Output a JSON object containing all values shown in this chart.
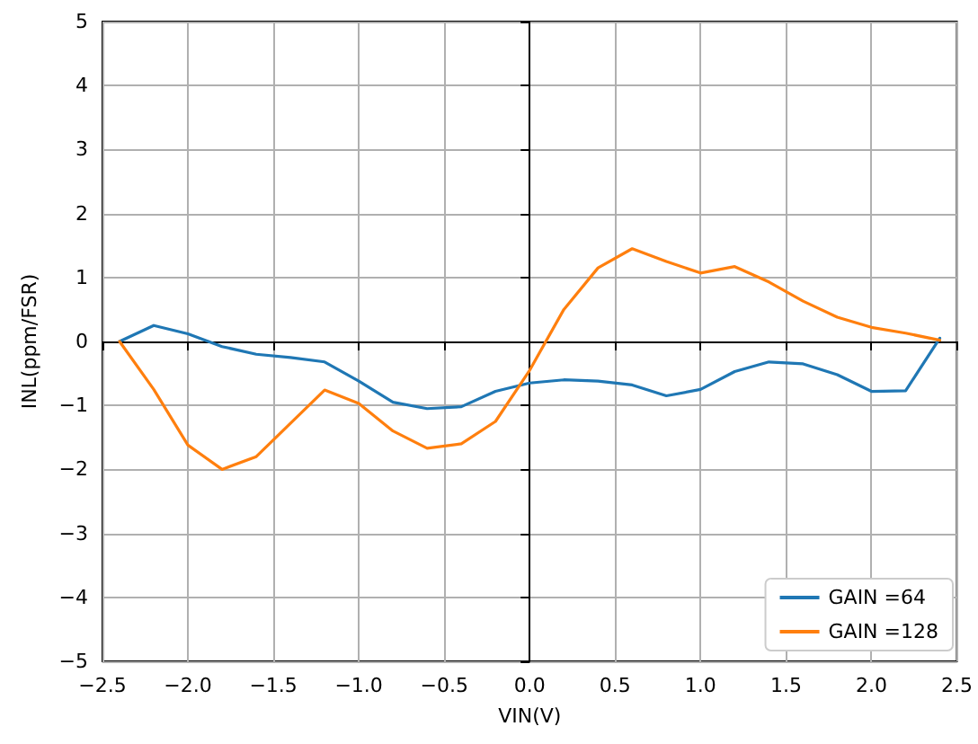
{
  "chart_data": {
    "type": "line",
    "x": [
      -2.4,
      -2.2,
      -2.0,
      -1.8,
      -1.6,
      -1.4,
      -1.2,
      -1.0,
      -0.8,
      -0.6,
      -0.4,
      -0.2,
      0,
      0.2,
      0.4,
      0.6,
      0.8,
      1.0,
      1.2,
      1.4,
      1.6,
      1.8,
      2.0,
      2.2,
      2.4
    ],
    "series": [
      {
        "name": "GAIN =64",
        "color": "#1f77b4",
        "values": [
          0,
          0.25,
          0.12,
          -0.08,
          -0.2,
          -0.25,
          -0.32,
          -0.62,
          -0.95,
          -1.05,
          -1.02,
          -0.78,
          -0.65,
          -0.6,
          -0.62,
          -0.68,
          -0.85,
          -0.75,
          -0.47,
          -0.32,
          -0.35,
          -0.52,
          -0.78,
          -0.77,
          0.05
        ]
      },
      {
        "name": "GAIN =128",
        "color": "#ff7f0e",
        "values": [
          0,
          -0.75,
          -1.62,
          -2.0,
          -1.8,
          -1.28,
          -0.76,
          -0.97,
          -1.4,
          -1.67,
          -1.6,
          -1.25,
          -0.45,
          0.5,
          1.15,
          1.45,
          1.25,
          1.07,
          1.17,
          0.93,
          0.63,
          0.38,
          0.22,
          0.13,
          0.02
        ]
      }
    ],
    "xlabel": "VIN(V)",
    "ylabel": "INL(ppm/FSR)",
    "xlim": [
      -2.5,
      2.5
    ],
    "xticks": [
      {
        "value": -2.5,
        "label": "−2.5"
      },
      {
        "value": -2.0,
        "label": "−2.0"
      },
      {
        "value": -1.5,
        "label": "−1.5"
      },
      {
        "value": -1.0,
        "label": "−1.0"
      },
      {
        "value": -0.5,
        "label": "−0.5"
      },
      {
        "value": 0,
        "label": "0.0"
      },
      {
        "value": 0.5,
        "label": "0.5"
      },
      {
        "value": 1.0,
        "label": "1.0"
      },
      {
        "value": 1.5,
        "label": "1.5"
      },
      {
        "value": 2.0,
        "label": "2.0"
      },
      {
        "value": 2.5,
        "label": "2.5"
      }
    ],
    "ylim": [
      -5,
      5
    ],
    "yticks": [
      {
        "value": -5,
        "label": "−5"
      },
      {
        "value": -4,
        "label": "−4"
      },
      {
        "value": -3,
        "label": "−3"
      },
      {
        "value": -2,
        "label": "−2"
      },
      {
        "value": -1,
        "label": "−1"
      },
      0,
      1,
      2,
      3,
      4,
      5
    ],
    "grid": true,
    "legend": "bottom right",
    "marker": "none",
    "line_style": "solid"
  }
}
